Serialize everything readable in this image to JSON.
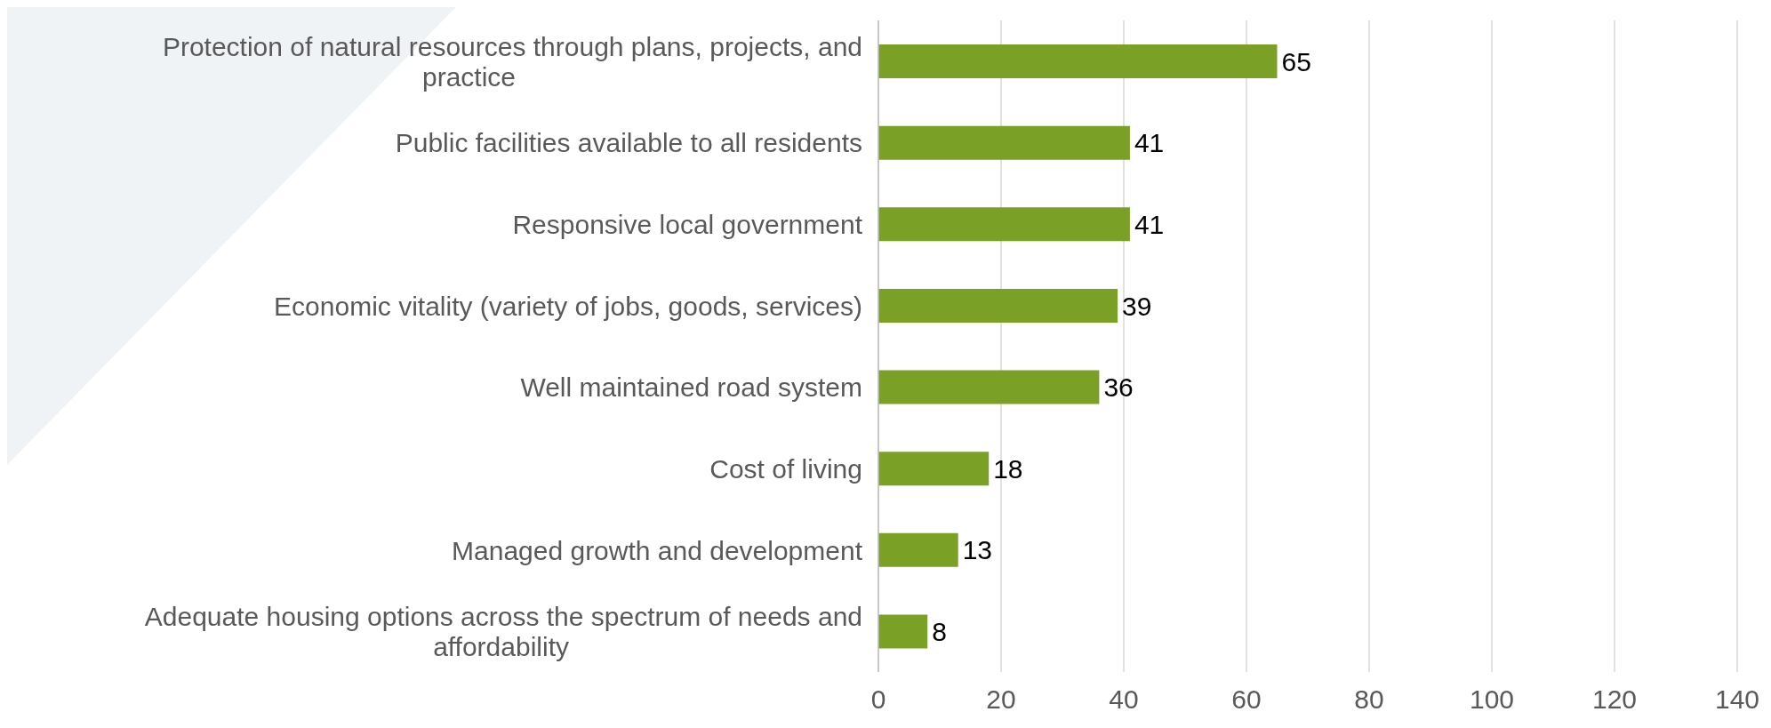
{
  "chart_data": {
    "type": "bar",
    "orientation": "horizontal",
    "categories": [
      "Protection of natural resources through plans, projects, and practice",
      "Public facilities available to all residents",
      "Responsive local government",
      "Economic vitality (variety of jobs, goods, services)",
      "Well maintained road system",
      "Cost of living",
      "Managed growth and development",
      "Adequate housing options across the spectrum of needs and affordability"
    ],
    "values": [
      65,
      41,
      41,
      39,
      36,
      18,
      13,
      8
    ],
    "color": "#7aa025",
    "xlim": [
      0,
      140
    ],
    "xticks": [
      0,
      20,
      40,
      60,
      80,
      100,
      120,
      140
    ],
    "grid": "x",
    "data_labels": true
  }
}
